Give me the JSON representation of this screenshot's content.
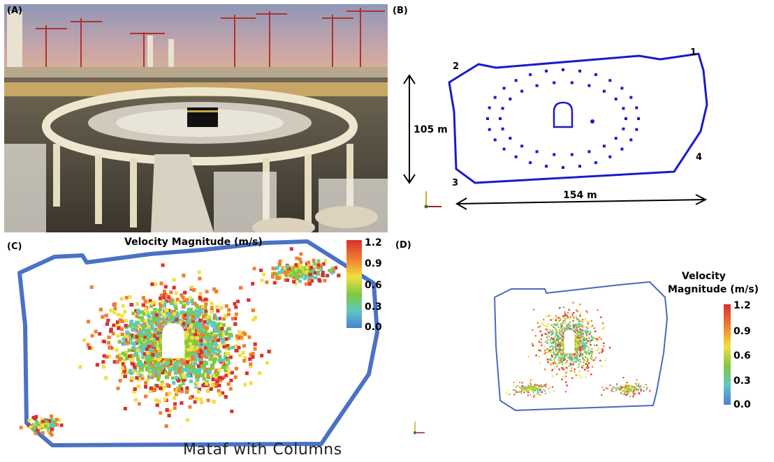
{
  "panels": {
    "a": {
      "label": "(A)"
    },
    "b": {
      "label": "(B)",
      "corners": [
        "1",
        "2",
        "3",
        "4"
      ],
      "height_label": "105 m",
      "width_label": "154 m"
    },
    "c": {
      "label": "(C)",
      "colorbar_title": "Velocity Magnitude (m/s)",
      "ticks": [
        "1.2",
        "0.9",
        "0.6",
        "0.3",
        "0.0"
      ],
      "caption": "Mataf with Columns"
    },
    "d": {
      "label": "(D)",
      "colorbar_title_line1": "Velocity",
      "colorbar_title_line2": "Magnitude (m/s)",
      "ticks": [
        "1.2",
        "0.9",
        "0.6",
        "0.3",
        "0.0"
      ]
    }
  },
  "colors": {
    "outline_blue": "#1a1acc",
    "heatmap_outline": "#4a72c4",
    "velocity_scale": [
      "#d93030",
      "#f08030",
      "#f0e040",
      "#80c840",
      "#60c8c0",
      "#4a80d0"
    ]
  }
}
